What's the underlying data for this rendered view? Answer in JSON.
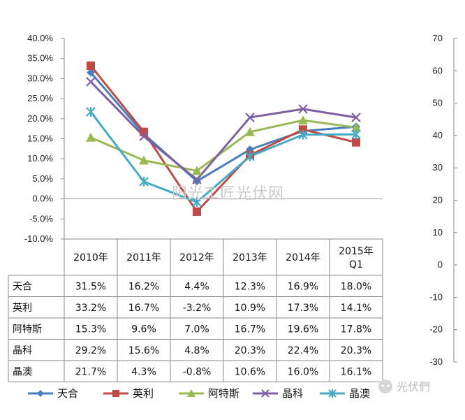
{
  "chart_data": {
    "type": "line",
    "categories": [
      "2010年",
      "2011年",
      "2012年",
      "2013年",
      "2014年",
      "2015年 Q1"
    ],
    "series": [
      {
        "name": "天合",
        "color": "#4a7ebb",
        "marker": "diamond",
        "values": [
          31.5,
          16.2,
          4.4,
          12.3,
          16.9,
          18.0
        ],
        "labels": [
          "31.5%",
          "16.2%",
          "4.4%",
          "12.3%",
          "16.9%",
          "18.0%"
        ]
      },
      {
        "name": "英利",
        "color": "#be4b48",
        "marker": "square",
        "values": [
          33.2,
          16.7,
          -3.2,
          10.9,
          17.3,
          14.1
        ],
        "labels": [
          "33.2%",
          "16.7%",
          "-3.2%",
          "10.9%",
          "17.3%",
          "14.1%"
        ]
      },
      {
        "name": "阿特斯",
        "color": "#98b954",
        "marker": "triangle",
        "values": [
          15.3,
          9.6,
          7.0,
          16.7,
          19.6,
          17.8
        ],
        "labels": [
          "15.3%",
          "9.6%",
          "7.0%",
          "16.7%",
          "19.6%",
          "17.8%"
        ]
      },
      {
        "name": "晶科",
        "color": "#7d60a0",
        "marker": "x",
        "values": [
          29.2,
          15.6,
          4.8,
          20.3,
          22.4,
          20.3
        ],
        "labels": [
          "29.2%",
          "15.6%",
          "4.8%",
          "20.3%",
          "22.4%",
          "20.3%"
        ]
      },
      {
        "name": "晶澳",
        "color": "#46aac5",
        "marker": "star",
        "values": [
          21.7,
          4.3,
          -0.8,
          10.6,
          16.0,
          16.1
        ],
        "labels": [
          "21.7%",
          "4.3%",
          "-0.8%",
          "10.6%",
          "16.0%",
          "16.1%"
        ]
      }
    ],
    "y_left": {
      "ticks": [
        "40.0%",
        "35.0%",
        "30.0%",
        "25.0%",
        "20.0%",
        "15.0%",
        "10.0%",
        "5.0%",
        "0.0%",
        "-5.0%",
        "-10.0%"
      ],
      "range": [
        -10,
        40
      ]
    },
    "y_right": {
      "ticks": [
        "70",
        "60",
        "50",
        "40",
        "30",
        "20",
        "10",
        "0",
        "-10",
        "-20",
        "-30"
      ],
      "range": [
        -30,
        70
      ]
    },
    "legend": "bottom"
  },
  "watermark": "阳光工匠光伏网",
  "brand_badge": "光伏們"
}
